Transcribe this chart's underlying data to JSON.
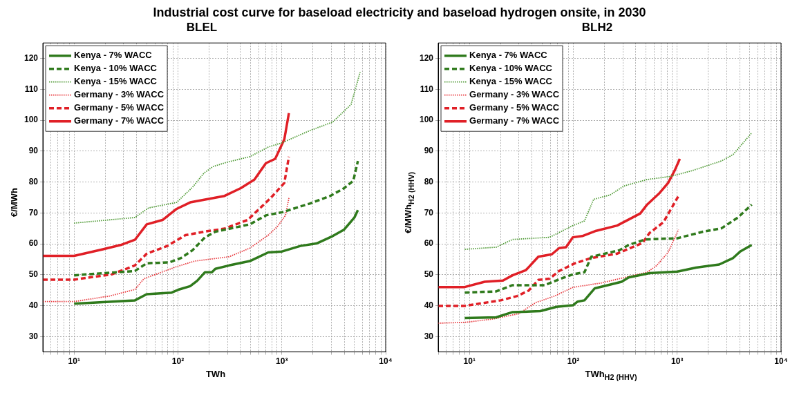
{
  "chart_data": [
    {
      "type": "line",
      "title": "Industrial cost curve for baseload electricity and baseload hydrogen onsite, in 2030",
      "subtitle": "BLEL",
      "xlabel": "TWh",
      "ylabel": "€/MWh",
      "log": "x",
      "grid": true,
      "legend": "top left",
      "xlim": [
        5,
        10000
      ],
      "ylim": [
        25,
        125
      ],
      "xticks": [
        {
          "value": 5,
          "label": null
        },
        {
          "value": 6,
          "label": null
        },
        {
          "value": 7,
          "label": null
        },
        {
          "value": 8,
          "label": null
        },
        {
          "value": 9,
          "label": null
        },
        {
          "value": 10,
          "label": "10¹"
        },
        {
          "value": 20,
          "label": null
        },
        {
          "value": 30,
          "label": null
        },
        {
          "value": 40,
          "label": null
        },
        {
          "value": 50,
          "label": null
        },
        {
          "value": 60,
          "label": null
        },
        {
          "value": 70,
          "label": null
        },
        {
          "value": 80,
          "label": null
        },
        {
          "value": 90,
          "label": null
        },
        {
          "value": 100,
          "label": "10²"
        },
        {
          "value": 200,
          "label": null
        },
        {
          "value": 300,
          "label": null
        },
        {
          "value": 400,
          "label": null
        },
        {
          "value": 500,
          "label": null
        },
        {
          "value": 600,
          "label": null
        },
        {
          "value": 700,
          "label": null
        },
        {
          "value": 800,
          "label": null
        },
        {
          "value": 900,
          "label": null
        },
        {
          "value": 1000,
          "label": "10³"
        },
        {
          "value": 2000,
          "label": null
        },
        {
          "value": 3000,
          "label": null
        },
        {
          "value": 4000,
          "label": null
        },
        {
          "value": 5000,
          "label": null
        },
        {
          "value": 6000,
          "label": null
        },
        {
          "value": 7000,
          "label": null
        },
        {
          "value": 8000,
          "label": null
        },
        {
          "value": 9000,
          "label": null
        },
        {
          "value": 10000,
          "label": "10⁴"
        }
      ],
      "yticks": [
        30,
        40,
        50,
        60,
        70,
        80,
        90,
        100,
        110,
        120
      ],
      "series": [
        {
          "name": "Kenya - 7% WACC",
          "color": "#2f7a1c",
          "line_style": "solid",
          "x": [
            10,
            38.5,
            50,
            87,
            102,
            131,
            153,
            182,
            212,
            229,
            311,
            492,
            740,
            1005,
            1510,
            2160,
            3090,
            3980,
            5000,
            5400
          ],
          "values": [
            40.6,
            41.7,
            43.7,
            44.2,
            45.2,
            46.3,
            48,
            50.8,
            50.8,
            51.9,
            53,
            54.4,
            57.2,
            57.5,
            59.3,
            60.1,
            62.5,
            64.6,
            68.5,
            70.9
          ]
        },
        {
          "name": "Kenya - 10% WACC",
          "color": "#2f7a1c",
          "line_style": "dashed",
          "x": [
            10,
            38.5,
            50,
            83,
            107,
            138,
            182,
            229,
            492,
            703,
            1005,
            1850,
            2930,
            3980,
            4880,
            5400
          ],
          "values": [
            49.8,
            51.2,
            53.7,
            54,
            55.4,
            57.9,
            62.1,
            63.9,
            66.3,
            69.2,
            70.2,
            73,
            75.5,
            78,
            80.4,
            86.8
          ]
        },
        {
          "name": "Kenya - 15% WACC",
          "color": "#4f9a35",
          "line_style": "dotted",
          "x": [
            10,
            38.5,
            52,
            97,
            138,
            178,
            218,
            296,
            492,
            740,
            1005,
            1850,
            3090,
            4640,
            5680
          ],
          "values": [
            66.7,
            68.5,
            71.6,
            73.4,
            78.3,
            82.9,
            85,
            86.4,
            88.2,
            91.3,
            92.7,
            96.6,
            99.4,
            105.1,
            115.6
          ]
        },
        {
          "name": "Germany - 3% WACC",
          "color": "#e8383d",
          "line_style": "dotted",
          "x": [
            5,
            10,
            22,
            38.5,
            47,
            97,
            145,
            311,
            492,
            740,
            908,
            1085,
            1170
          ],
          "values": [
            41.3,
            41.3,
            43.1,
            45.2,
            48.7,
            52.6,
            54.4,
            55.8,
            58.6,
            62.8,
            65.6,
            69.2,
            74.8
          ]
        },
        {
          "name": "Germany - 5% WACC",
          "color": "#e01f26",
          "line_style": "dashed",
          "x": [
            5,
            10,
            23,
            38.5,
            50,
            79,
            118,
            178,
            281,
            468,
            780,
            1057,
            1170
          ],
          "values": [
            48.4,
            48.4,
            50.1,
            53,
            56.8,
            59.3,
            62.8,
            63.9,
            64.9,
            67.7,
            74.8,
            79.7,
            88.2
          ]
        },
        {
          "name": "Germany - 7% WACC",
          "color": "#e01f26",
          "line_style": "solid",
          "x": [
            5,
            10,
            18.9,
            28,
            38.5,
            50,
            71,
            97,
            131,
            281,
            402,
            545,
            703,
            863,
            1057,
            1170
          ],
          "values": [
            56.1,
            56.1,
            58.2,
            59.6,
            61.3,
            66.3,
            67.7,
            71.3,
            73.4,
            75.5,
            78,
            80.8,
            86.1,
            87.5,
            93.8,
            102.3
          ]
        }
      ]
    },
    {
      "type": "line",
      "subtitle": "BLH2",
      "xlabel": "TWh$_{H2 (HHV)}$",
      "ylabel": "€/MWh$_{H2 (HHV)}$",
      "log": "x",
      "grid": true,
      "legend": "top left",
      "xlim": [
        5,
        10000
      ],
      "ylim": [
        25,
        125
      ],
      "xticks": [
        {
          "value": 5,
          "label": null
        },
        {
          "value": 6,
          "label": null
        },
        {
          "value": 7,
          "label": null
        },
        {
          "value": 8,
          "label": null
        },
        {
          "value": 9,
          "label": null
        },
        {
          "value": 10,
          "label": "10¹"
        },
        {
          "value": 20,
          "label": null
        },
        {
          "value": 30,
          "label": null
        },
        {
          "value": 40,
          "label": null
        },
        {
          "value": 50,
          "label": null
        },
        {
          "value": 60,
          "label": null
        },
        {
          "value": 70,
          "label": null
        },
        {
          "value": 80,
          "label": null
        },
        {
          "value": 90,
          "label": null
        },
        {
          "value": 100,
          "label": "10²"
        },
        {
          "value": 200,
          "label": null
        },
        {
          "value": 300,
          "label": null
        },
        {
          "value": 400,
          "label": null
        },
        {
          "value": 500,
          "label": null
        },
        {
          "value": 600,
          "label": null
        },
        {
          "value": 700,
          "label": null
        },
        {
          "value": 800,
          "label": null
        },
        {
          "value": 900,
          "label": null
        },
        {
          "value": 1000,
          "label": "10³"
        },
        {
          "value": 2000,
          "label": null
        },
        {
          "value": 3000,
          "label": null
        },
        {
          "value": 4000,
          "label": null
        },
        {
          "value": 5000,
          "label": null
        },
        {
          "value": 6000,
          "label": null
        },
        {
          "value": 7000,
          "label": null
        },
        {
          "value": 8000,
          "label": null
        },
        {
          "value": 9000,
          "label": null
        },
        {
          "value": 10000,
          "label": "10⁴"
        }
      ],
      "yticks": [
        30,
        40,
        50,
        60,
        70,
        80,
        90,
        100,
        110,
        120
      ],
      "series": [
        {
          "name": "Kenya - 7% WACC",
          "color": "#2f7a1c",
          "line_style": "solid",
          "x": [
            9,
            18.1,
            26,
            48,
            69,
            99,
            110,
            128,
            161,
            214,
            292,
            341,
            542,
            1005,
            1520,
            2540,
            3460,
            4040,
            5220
          ],
          "values": [
            36,
            36.2,
            37.9,
            38.2,
            39.6,
            40.1,
            41.3,
            41.7,
            45.6,
            46.6,
            47.7,
            49.1,
            50.5,
            51,
            52.3,
            53.3,
            55.4,
            57.5,
            59.6
          ]
        },
        {
          "name": "Kenya - 10% WACC",
          "color": "#2f7a1c",
          "line_style": "dashed",
          "x": [
            9,
            18.1,
            26,
            53,
            77,
            99,
            128,
            149,
            277,
            341,
            489,
            1005,
            1770,
            2670,
            3840,
            5220
          ],
          "values": [
            44.2,
            44.6,
            46.6,
            46.6,
            48.8,
            50.1,
            50.8,
            55.8,
            57.9,
            59.6,
            61.4,
            61.8,
            63.9,
            65,
            68.5,
            72.7
          ]
        },
        {
          "name": "Kenya - 15% WACC",
          "color": "#4f9a35",
          "line_style": "dotted",
          "x": [
            9,
            18.1,
            26,
            59,
            99,
            128,
            157,
            226,
            307,
            514,
            861,
            1370,
            2670,
            3460,
            5220
          ],
          "values": [
            58.2,
            58.9,
            61.4,
            62.1,
            65.9,
            67.4,
            74.4,
            75.8,
            78.7,
            80.8,
            81.8,
            83.6,
            86.8,
            88.9,
            95.9
          ]
        },
        {
          "name": "Germany - 3% WACC",
          "color": "#e8383d",
          "line_style": "dotted",
          "x": [
            5,
            9.3,
            17.2,
            30,
            43,
            66,
            99,
            184,
            341,
            514,
            632,
            818,
            1030
          ],
          "values": [
            34.3,
            34.6,
            35.7,
            37.4,
            40.9,
            43.1,
            45.9,
            47.3,
            49.4,
            50.8,
            52.9,
            57.2,
            64.6
          ]
        },
        {
          "name": "Germany - 5% WACC",
          "color": "#e01f26",
          "line_style": "dashed",
          "x": [
            5,
            9,
            20,
            28.8,
            37,
            46,
            59,
            73,
            104,
            149,
            264,
            464,
            542,
            738,
            861,
            1030
          ],
          "values": [
            39.9,
            39.9,
            41.7,
            43.1,
            44.8,
            48.3,
            48.7,
            51.2,
            53.7,
            55.4,
            56.8,
            60.3,
            63.5,
            67,
            70.9,
            75.5
          ]
        },
        {
          "name": "Germany - 7% WACC",
          "color": "#e01f26",
          "line_style": "solid",
          "x": [
            5,
            9,
            14,
            21,
            26,
            35,
            46,
            62,
            73,
            85,
            99,
            122,
            166,
            264,
            441,
            514,
            666,
            818,
            955,
            1060
          ],
          "values": [
            46,
            46,
            47.7,
            48.1,
            49.8,
            51.5,
            55.8,
            56.6,
            58.6,
            58.9,
            62.1,
            62.5,
            64.2,
            65.9,
            69.8,
            72.7,
            76.2,
            79.7,
            84,
            87.5
          ]
        }
      ]
    }
  ]
}
